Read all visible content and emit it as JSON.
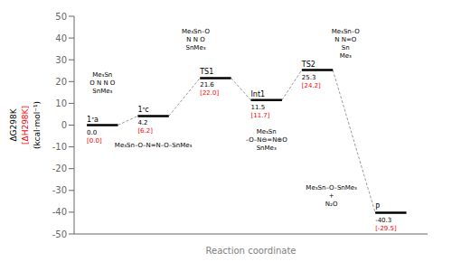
{
  "chart_data": {
    "type": "energy",
    "xlabel": "Reaction coordinate",
    "ylabel": "(kcal·mol⁻¹)",
    "categories": [
      "1ᵌa",
      "1ᵌc",
      "TS1",
      "Int1",
      "TS2",
      "P"
    ],
    "x": [
      1.0,
      2.8,
      5.0,
      6.8,
      8.6,
      11.2
    ],
    "xlim": [
      0,
      12.5
    ],
    "ylim": [
      -50,
      50
    ],
    "yticks": [
      -50,
      -40,
      -30,
      -20,
      -10,
      0,
      10,
      20,
      30,
      40,
      50
    ],
    "tick_labels": "y",
    "grid": false,
    "data_labels": true,
    "series": [
      {
        "name": "ΔG298K",
        "color": "#000000",
        "values": [
          0.0,
          4.2,
          21.6,
          11.5,
          25.3,
          -40.3
        ],
        "value_labels": [
          "0.0",
          "4.2",
          "21.6",
          "11.5",
          "25.3",
          "-40.3"
        ]
      },
      {
        "name": "[ΔH298K]",
        "color": "#ff0000",
        "values": [
          0.0,
          6.2,
          22.0,
          11.7,
          24.2,
          -29.5
        ],
        "value_labels": [
          "[0.0]",
          "[6.2]",
          "[22.0]",
          "[11.7]",
          "[24.2]",
          "[-29.5]"
        ]
      }
    ],
    "annotations": [
      [
        "Me₃Sn",
        "O N N O",
        "SnMe₃"
      ],
      [
        "Me₃Sn–O–N=N–O–SnMe₃"
      ],
      [
        "Me₃Sn–O",
        "N N O",
        "SnMe₃"
      ],
      [
        "Me₃Sn",
        "–O–N⊖=N⊕O",
        "SnMe₃"
      ],
      [
        "Me₃Sn–O",
        "N N=O",
        "Sn",
        "Me₃"
      ],
      [
        "Me₃Sn–O–SnMe₃",
        "+",
        "N₂O"
      ]
    ]
  }
}
